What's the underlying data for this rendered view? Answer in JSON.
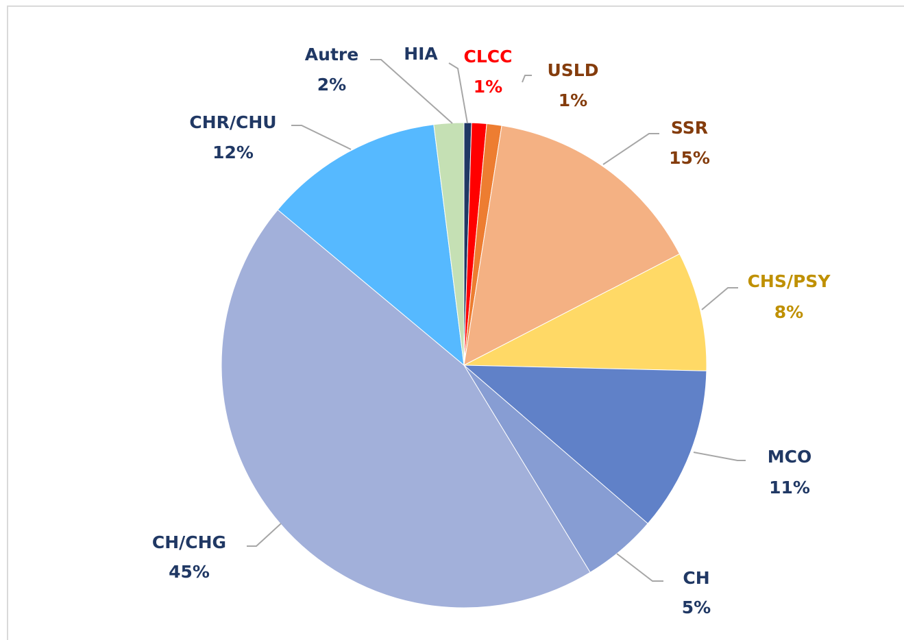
{
  "chart_data": {
    "type": "pie",
    "categories": [
      "HIA",
      "CLCC",
      "USLD",
      "SSR",
      "CHS/PSY",
      "MCO",
      "CH",
      "CH/CHG",
      "CHR/CHU",
      "Autre"
    ],
    "values": [
      0.5,
      1,
      1,
      15,
      8,
      11,
      5,
      45,
      12,
      2
    ],
    "value_labels": [
      null,
      "1%",
      "1%",
      "15%",
      "8%",
      "11%",
      "5%",
      "45%",
      "12%",
      "2%"
    ],
    "colors": [
      "#203864",
      "#ff0000",
      "#ed7d31",
      "#f4b183",
      "#ffd966",
      "#6081c8",
      "#879dd3",
      "#a2b0da",
      "#56b9ff",
      "#c5e0b4"
    ],
    "label_colors": [
      "#203864",
      "#ff0000",
      "#843c0c",
      "#843c0c",
      "#bf9000",
      "#203864",
      "#203864",
      "#203864",
      "#203864",
      "#203864"
    ]
  }
}
